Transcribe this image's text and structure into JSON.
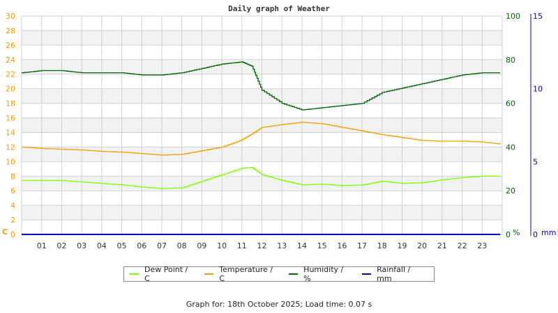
{
  "title": "Daily graph of Weather",
  "footer": "Graph for: 18th October 2025; Load time: 0.07 s",
  "colors": {
    "dew_point": "#7fff00",
    "temperature": "#f4a000",
    "humidity": "#006400",
    "rainfall": "#0000cc",
    "left_axis": "#f4a000",
    "humidity_axis": "#006400",
    "rain_axis": "#0000cc",
    "grid": "#d0d0d0",
    "band": "#f2f2f2"
  },
  "legend": [
    {
      "label": "Dew Point / C",
      "color": "#7fff00"
    },
    {
      "label": "Temperature / C",
      "color": "#f4a000"
    },
    {
      "label": "Humidity / %",
      "color": "#006400"
    },
    {
      "label": "Rainfall / mm",
      "color": "#0000cc"
    }
  ],
  "chart_data": {
    "type": "line",
    "title": "Daily graph of Weather",
    "xlabel": "",
    "x_ticks": [
      "01",
      "02",
      "03",
      "04",
      "05",
      "06",
      "07",
      "08",
      "09",
      "10",
      "11",
      "12",
      "13",
      "14",
      "15",
      "16",
      "17",
      "18",
      "19",
      "20",
      "21",
      "22",
      "23"
    ],
    "x_range": [
      0,
      24
    ],
    "grid": true,
    "legend_position": "bottom",
    "axes": {
      "left": {
        "label": "C",
        "range": [
          0,
          30
        ],
        "ticks": [
          0,
          2,
          4,
          6,
          8,
          10,
          12,
          14,
          16,
          18,
          20,
          22,
          24,
          26,
          28,
          30
        ]
      },
      "right_humidity": {
        "label": "%",
        "range": [
          0,
          100
        ],
        "ticks": [
          0,
          20,
          40,
          60,
          80,
          100
        ]
      },
      "right_rain": {
        "label": "mm",
        "range": [
          0,
          15
        ],
        "ticks": [
          0,
          5,
          10,
          15
        ]
      }
    },
    "x": [
      0,
      1,
      2,
      3,
      4,
      5,
      6,
      7,
      8,
      9,
      10,
      11,
      11.5,
      12,
      13,
      14,
      15,
      16,
      17,
      18,
      19,
      20,
      21,
      22,
      23,
      23.9
    ],
    "series": [
      {
        "name": "Dew Point / C",
        "axis": "left",
        "values": [
          7.4,
          7.4,
          7.4,
          7.2,
          7.0,
          6.8,
          6.5,
          6.3,
          6.4,
          7.3,
          8.2,
          9.1,
          9.2,
          8.2,
          7.4,
          6.8,
          6.9,
          6.7,
          6.8,
          7.3,
          7.0,
          7.1,
          7.5,
          7.8,
          8.0,
          8.0
        ]
      },
      {
        "name": "Temperature / C",
        "axis": "left",
        "values": [
          12.0,
          11.8,
          11.7,
          11.6,
          11.4,
          11.3,
          11.1,
          10.9,
          11.0,
          11.5,
          12.0,
          13.0,
          13.8,
          14.7,
          15.1,
          15.4,
          15.2,
          14.7,
          14.2,
          13.7,
          13.3,
          12.9,
          12.8,
          12.8,
          12.7,
          12.4
        ]
      },
      {
        "name": "Humidity / %",
        "axis": "right_humidity",
        "values": [
          74,
          75,
          75,
          74,
          74,
          74,
          73,
          73,
          74,
          76,
          78,
          79,
          77,
          66,
          60,
          57,
          58,
          59,
          60,
          65,
          67,
          69,
          71,
          73,
          74,
          74
        ]
      },
      {
        "name": "Rainfall / mm",
        "axis": "right_rain",
        "values": [
          0,
          0,
          0,
          0,
          0,
          0,
          0,
          0,
          0,
          0,
          0,
          0,
          0,
          0,
          0,
          0,
          0,
          0,
          0,
          0,
          0,
          0,
          0,
          0,
          0,
          0
        ]
      }
    ]
  }
}
